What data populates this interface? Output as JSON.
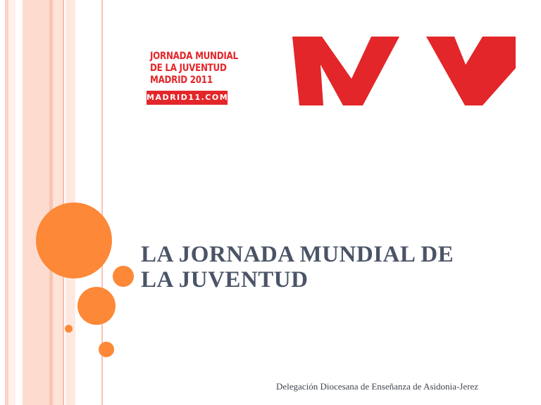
{
  "logo": {
    "line1": "JORNADA MUNDIAL",
    "line2": "DE LA JUVENTUD",
    "line3": "MADRID 2011",
    "badge": "MADRID11.COM",
    "brand_color": "#e3262a"
  },
  "title": {
    "line1": "LA JORNADA MUNDIAL DE",
    "line2": "LA JUVENTUD"
  },
  "subtitle": "Delegación Diocesana de Enseñanza de Asidonia-Jerez",
  "accent_color": "#fd8837"
}
